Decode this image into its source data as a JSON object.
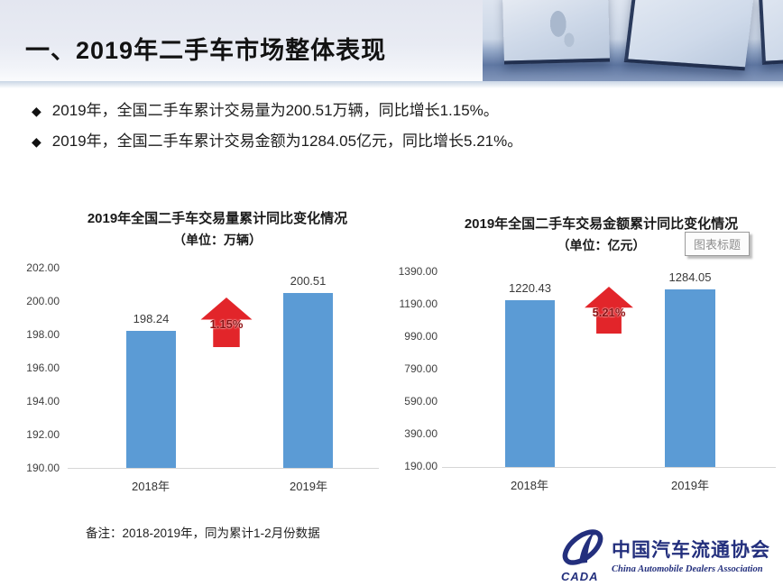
{
  "header": {
    "title": "一、2019年二手车市场整体表现"
  },
  "bullets": [
    {
      "text": "2019年，全国二手车累计交易量为200.51万辆，同比增长1.15%。"
    },
    {
      "text": "2019年，全国二手车累计交易金额为1284.05亿元，同比增长5.21%。"
    }
  ],
  "tooltip": {
    "label": "图表标题"
  },
  "note": "备注：2018-2019年，同为累计1-2月份数据",
  "logo": {
    "cada": "CADA",
    "name_cn": "中国汽车流通协会",
    "name_en": "China Automobile Dealers Association"
  },
  "colors": {
    "bar_blue": "#5B9BD5",
    "arrow_red": "#E2252A",
    "navy": "#232F7D",
    "axis_grey": "#D9D9D9"
  },
  "chart_data": [
    {
      "type": "bar",
      "title": "2019年全国二手车交易量累计同比变化情况",
      "subtitle": "（单位：万辆）",
      "categories": [
        "2018年",
        "2019年"
      ],
      "values": [
        198.24,
        200.51
      ],
      "data_labels": [
        "198.24",
        "200.51"
      ],
      "growth_label": "1.15%",
      "xlabel": "",
      "ylabel": "",
      "ylim": [
        190,
        202
      ],
      "ytick_step": 2,
      "yticks": [
        "202.00",
        "200.00",
        "198.00",
        "196.00",
        "194.00",
        "192.00",
        "190.00"
      ],
      "grid": false,
      "legend": false,
      "bar_color": "#5B9BD5"
    },
    {
      "type": "bar",
      "title": "2019年全国二手车交易金额累计同比变化情况",
      "subtitle": "（单位：亿元）",
      "categories": [
        "2018年",
        "2019年"
      ],
      "values": [
        1220.43,
        1284.05
      ],
      "data_labels": [
        "1220.43",
        "1284.05"
      ],
      "growth_label": "5.21%",
      "xlabel": "",
      "ylabel": "",
      "ylim": [
        190,
        1390
      ],
      "ytick_step": 200,
      "yticks": [
        "1390.00",
        "1190.00",
        "990.00",
        "790.00",
        "590.00",
        "390.00",
        "190.00"
      ],
      "grid": false,
      "legend": false,
      "bar_color": "#5B9BD5"
    }
  ]
}
